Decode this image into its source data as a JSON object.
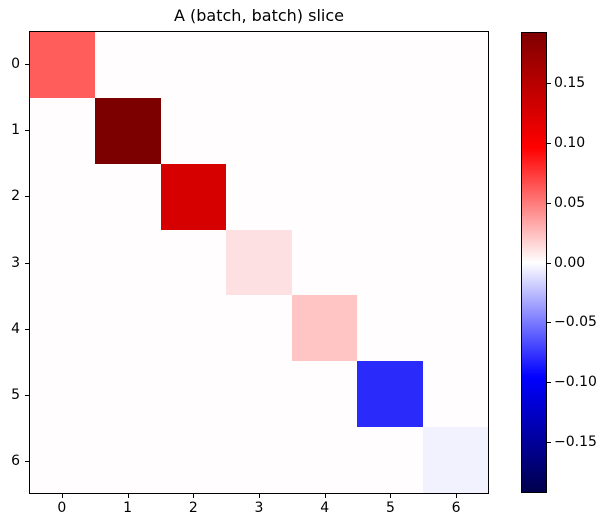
{
  "title": "A (batch, batch) slice",
  "chart_data": {
    "type": "heatmap",
    "title": "A (batch, batch) slice",
    "n_rows": 7,
    "n_cols": 7,
    "x_tick_labels": [
      "0",
      "1",
      "2",
      "3",
      "4",
      "5",
      "6"
    ],
    "y_tick_labels": [
      "0",
      "1",
      "2",
      "3",
      "4",
      "5",
      "6"
    ],
    "diagonal_values": [
      0.062,
      0.192,
      0.128,
      0.012,
      0.023,
      -0.081,
      -0.005
    ],
    "off_diagonal_value": 0.0,
    "colormap": "seismic",
    "vmin": -0.193,
    "vmax": 0.193,
    "colorbar_tick_values": [
      0.15,
      0.1,
      0.05,
      0.0,
      -0.05,
      -0.1,
      -0.15
    ],
    "colorbar_tick_labels": [
      "0.15",
      "0.10",
      "0.05",
      "0.00",
      "−0.05",
      "−0.10",
      "−0.15"
    ],
    "legend_position": "right-colorbar",
    "grid": false,
    "diagonal_colors": [
      "#ff5c5c",
      "#7d0000",
      "#d60000",
      "#fce0e2",
      "#ffc5c5",
      "#2a2afb",
      "#f2f2fe"
    ],
    "off_diagonal_color": "#fffdfd",
    "gradient_stops": [
      {
        "pos": 0.0,
        "color": "#00004c"
      },
      {
        "pos": 0.25,
        "color": "#0000ff"
      },
      {
        "pos": 0.5,
        "color": "#ffffff"
      },
      {
        "pos": 0.75,
        "color": "#ff0000"
      },
      {
        "pos": 1.0,
        "color": "#800000"
      }
    ]
  }
}
